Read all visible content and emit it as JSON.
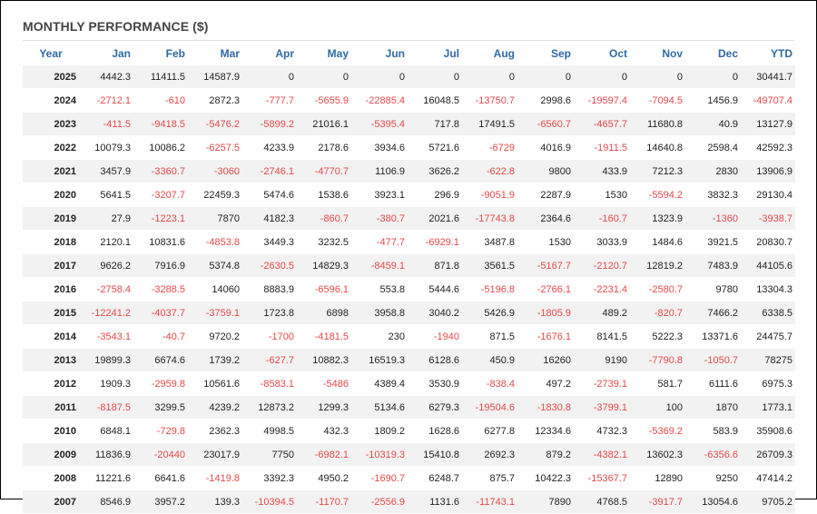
{
  "title": "MONTHLY PERFORMANCE ($)",
  "colors": {
    "header": "#2e6aa6",
    "negative": "#e8484a",
    "stripe": "#f2f2f2"
  },
  "columns": [
    "Year",
    "Jan",
    "Feb",
    "Mar",
    "Apr",
    "May",
    "Jun",
    "Jul",
    "Aug",
    "Sep",
    "Oct",
    "Nov",
    "Dec",
    "YTD"
  ],
  "rows": [
    [
      "2025",
      "4442.3",
      "11411.5",
      "14587.9",
      "0",
      "0",
      "0",
      "0",
      "0",
      "0",
      "0",
      "0",
      "0",
      "30441.7"
    ],
    [
      "2024",
      "-2712.1",
      "-610",
      "2872.3",
      "-777.7",
      "-5655.9",
      "-22885.4",
      "16048.5",
      "-13750.7",
      "2998.6",
      "-19597.4",
      "-7094.5",
      "1456.9",
      "-49707.4"
    ],
    [
      "2023",
      "-411.5",
      "-9418.5",
      "-5476.2",
      "-5899.2",
      "21016.1",
      "-5395.4",
      "717.8",
      "17491.5",
      "-6560.7",
      "-4657.7",
      "11680.8",
      "40.9",
      "13127.9"
    ],
    [
      "2022",
      "10079.3",
      "10086.2",
      "-6257.5",
      "4233.9",
      "2178.6",
      "3934.6",
      "5721.6",
      "-6729",
      "4016.9",
      "-1911.5",
      "14640.8",
      "2598.4",
      "42592.3"
    ],
    [
      "2021",
      "3457.9",
      "-3360.7",
      "-3060",
      "-2746.1",
      "-4770.7",
      "1106.9",
      "3626.2",
      "-622.8",
      "9800",
      "433.9",
      "7212.3",
      "2830",
      "13906.9"
    ],
    [
      "2020",
      "5641.5",
      "-3207.7",
      "22459.3",
      "5474.6",
      "1538.6",
      "3923.1",
      "296.9",
      "-9051.9",
      "2287.9",
      "1530",
      "-5594.2",
      "3832.3",
      "29130.4"
    ],
    [
      "2019",
      "27.9",
      "-1223.1",
      "7870",
      "4182.3",
      "-860.7",
      "-380.7",
      "2021.6",
      "-17743.8",
      "2364.6",
      "-160.7",
      "1323.9",
      "-1360",
      "-3938.7"
    ],
    [
      "2018",
      "2120.1",
      "10831.6",
      "-4853.8",
      "3449.3",
      "3232.5",
      "-477.7",
      "-6929.1",
      "3487.8",
      "1530",
      "3033.9",
      "1484.6",
      "3921.5",
      "20830.7"
    ],
    [
      "2017",
      "9626.2",
      "7916.9",
      "5374.8",
      "-2630.5",
      "14829.3",
      "-8459.1",
      "871.8",
      "3561.5",
      "-5167.7",
      "-2120.7",
      "12819.2",
      "7483.9",
      "44105.6"
    ],
    [
      "2016",
      "-2758.4",
      "-3288.5",
      "14060",
      "8883.9",
      "-6596.1",
      "553.8",
      "5444.6",
      "-5196.8",
      "-2766.1",
      "-2231.4",
      "-2580.7",
      "9780",
      "13304.3"
    ],
    [
      "2015",
      "-12241.2",
      "-4037.7",
      "-3759.1",
      "1723.8",
      "6898",
      "3958.8",
      "3040.2",
      "5426.9",
      "-1805.9",
      "489.2",
      "-820.7",
      "7466.2",
      "6338.5"
    ],
    [
      "2014",
      "-3543.1",
      "-40.7",
      "9720.2",
      "-1700",
      "-4181.5",
      "230",
      "-1940",
      "871.5",
      "-1676.1",
      "8141.5",
      "5222.3",
      "13371.6",
      "24475.7"
    ],
    [
      "2013",
      "19899.3",
      "6674.6",
      "1739.2",
      "-627.7",
      "10882.3",
      "16519.3",
      "6128.6",
      "450.9",
      "16260",
      "9190",
      "-7790.8",
      "-1050.7",
      "78275"
    ],
    [
      "2012",
      "1909.3",
      "-2959.8",
      "10561.6",
      "-8583.1",
      "-5486",
      "4389.4",
      "3530.9",
      "-838.4",
      "497.2",
      "-2739.1",
      "581.7",
      "6111.6",
      "6975.3"
    ],
    [
      "2011",
      "-8187.5",
      "3299.5",
      "4239.2",
      "12873.2",
      "1299.3",
      "5134.6",
      "6279.3",
      "-19504.6",
      "-1830.8",
      "-3799.1",
      "100",
      "1870",
      "1773.1"
    ],
    [
      "2010",
      "6848.1",
      "-729.8",
      "2362.3",
      "4998.5",
      "432.3",
      "1809.2",
      "1628.6",
      "6277.8",
      "12334.6",
      "4732.3",
      "-5369.2",
      "583.9",
      "35908.6"
    ],
    [
      "2009",
      "11836.9",
      "-20440",
      "23017.9",
      "7750",
      "-6982.1",
      "-10319.3",
      "15410.8",
      "2692.3",
      "879.2",
      "-4382.1",
      "13602.3",
      "-6356.6",
      "26709.3"
    ],
    [
      "2008",
      "11221.6",
      "6641.6",
      "-1419.8",
      "3392.3",
      "4950.2",
      "-1690.7",
      "6248.7",
      "875.7",
      "10422.3",
      "-15367.7",
      "12890",
      "9250",
      "47414.2"
    ],
    [
      "2007",
      "8546.9",
      "3957.2",
      "139.3",
      "-10394.5",
      "-1170.7",
      "-2556.9",
      "1131.6",
      "-11743.1",
      "7890",
      "4768.5",
      "-3917.7",
      "13054.6",
      "9705.2"
    ]
  ]
}
